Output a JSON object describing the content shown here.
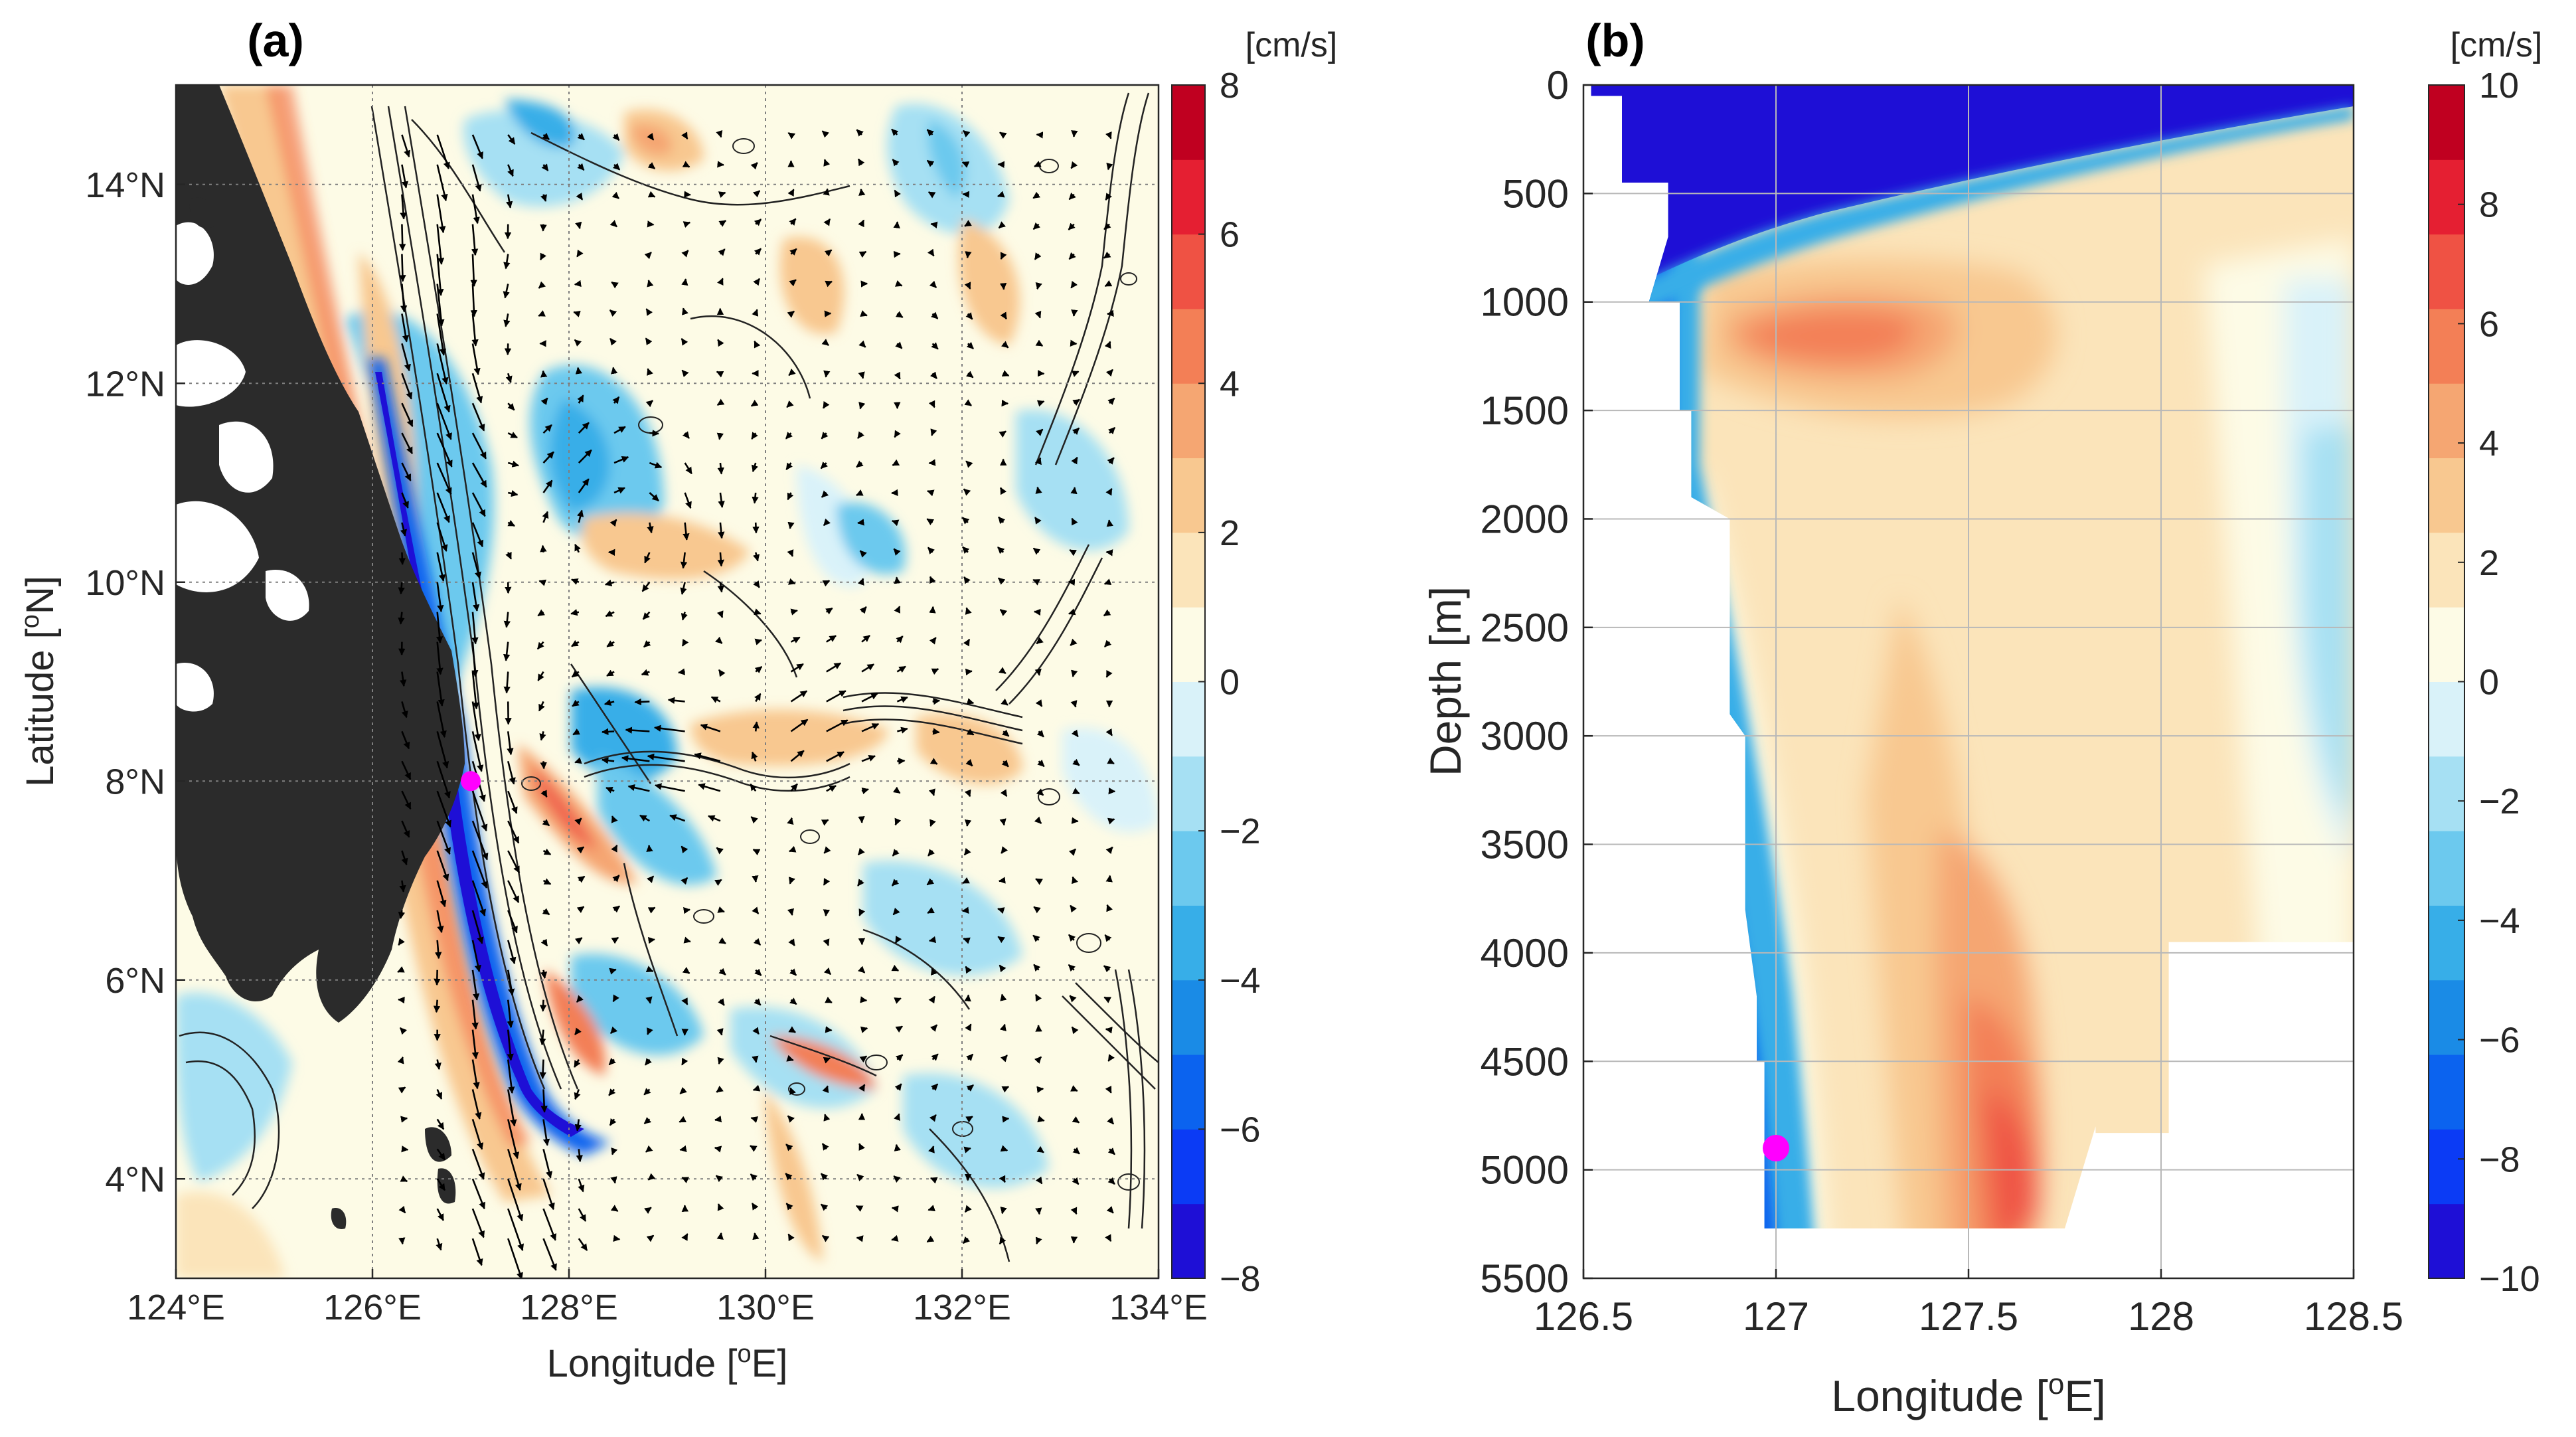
{
  "chart_data": [
    {
      "type": "heatmap",
      "panel_label": "(a)",
      "title": "",
      "xlabel": "Longitude [",
      "xlabel_sup": "o",
      "xlabel_end": "E]",
      "ylabel": "Latitude [",
      "ylabel_sup": "o",
      "ylabel_end": "N]",
      "xlim": [
        124,
        134
      ],
      "ylim": [
        3,
        15
      ],
      "xticks": [
        124,
        126,
        128,
        130,
        132,
        134
      ],
      "xtick_labels": [
        "124°E",
        "126°E",
        "128°E",
        "130°E",
        "132°E",
        "134°E"
      ],
      "yticks": [
        4,
        6,
        8,
        10,
        12,
        14
      ],
      "ytick_labels": [
        "4°N",
        "6°N",
        "8°N",
        "10°N",
        "12°N",
        "14°N"
      ],
      "grid": true,
      "marker": {
        "lon": 127.0,
        "lat": 8.0,
        "color": "#ff00ff"
      },
      "colorbar": {
        "unit": "[cm/s]",
        "range": [
          -8,
          8
        ],
        "ticks": [
          -8,
          -6,
          -4,
          -2,
          0,
          2,
          4,
          6,
          8
        ],
        "tick_labels": [
          "−8",
          "−6",
          "−4",
          "−2",
          "0",
          "2",
          "4",
          "6",
          "8"
        ]
      },
      "description_fields": [
        "velocity anomaly shading",
        "current vectors",
        "bathymetry contours",
        "land mask"
      ]
    },
    {
      "type": "heatmap",
      "panel_label": "(b)",
      "title": "",
      "xlabel": "Longitude [",
      "xlabel_sup": "o",
      "xlabel_end": "E]",
      "ylabel": "Depth [m]",
      "xlim": [
        126.5,
        128.5
      ],
      "ylim": [
        0,
        5500
      ],
      "xticks": [
        126.5,
        127,
        127.5,
        128,
        128.5
      ],
      "xtick_labels": [
        "126.5",
        "127",
        "127.5",
        "128",
        "128.5"
      ],
      "yticks": [
        0,
        500,
        1000,
        1500,
        2000,
        2500,
        3000,
        3500,
        4000,
        4500,
        5000,
        5500
      ],
      "ytick_labels": [
        "0",
        "500",
        "1000",
        "1500",
        "2000",
        "2500",
        "3000",
        "3500",
        "4000",
        "4500",
        "5000",
        "5500"
      ],
      "grid": true,
      "marker": {
        "lon": 127.0,
        "depth": 4900,
        "color": "#ff00ff"
      },
      "section_profile": {
        "left_edge_lon": [
          126.52,
          126.6,
          126.6,
          126.72,
          126.72,
          126.67,
          126.75,
          126.75,
          126.78,
          126.78,
          126.88,
          126.88,
          126.92,
          126.92,
          126.95,
          126.95,
          126.97,
          126.97
        ],
        "left_edge_depth": [
          50,
          50,
          450,
          450,
          700,
          1000,
          1000,
          1500,
          1500,
          1900,
          2000,
          2900,
          3000,
          3800,
          4200,
          4500,
          4500,
          5270
        ],
        "bottom_depth": 5270,
        "right_edge_lon": [
          127.75,
          127.83,
          127.83,
          128.02,
          128.02,
          128.5,
          128.5
        ],
        "right_edge_depth": [
          5270,
          4800,
          4830,
          4830,
          3950,
          3950,
          0
        ]
      },
      "core_maxima": [
        {
          "lon": 127.2,
          "depth": 950,
          "value": 5
        },
        {
          "lon": 127.65,
          "depth": 4700,
          "value": 5
        }
      ],
      "colorbar": {
        "unit": "[cm/s]",
        "range": [
          -10,
          10
        ],
        "ticks": [
          -10,
          -8,
          -6,
          -4,
          -2,
          0,
          2,
          4,
          6,
          8,
          10
        ],
        "tick_labels": [
          "−10",
          "−8",
          "−6",
          "−4",
          "−2",
          "0",
          "2",
          "4",
          "6",
          "8",
          "10"
        ]
      }
    }
  ],
  "palette": [
    "#1e0fd6",
    "#0b3bf5",
    "#0b63ef",
    "#1a8be6",
    "#37aee8",
    "#6cc9ee",
    "#a6e0f3",
    "#d9f2f9",
    "#fdfbe6",
    "#fbe4ba",
    "#f8c890",
    "#f5a672",
    "#f37f56",
    "#ef5244",
    "#e51f32",
    "#c00020"
  ],
  "colors": {
    "land": "#2b2b2b",
    "contour": "#222222",
    "arrow": "#000000",
    "grid": "#7f7f7f",
    "marker": "#ff00ff"
  }
}
